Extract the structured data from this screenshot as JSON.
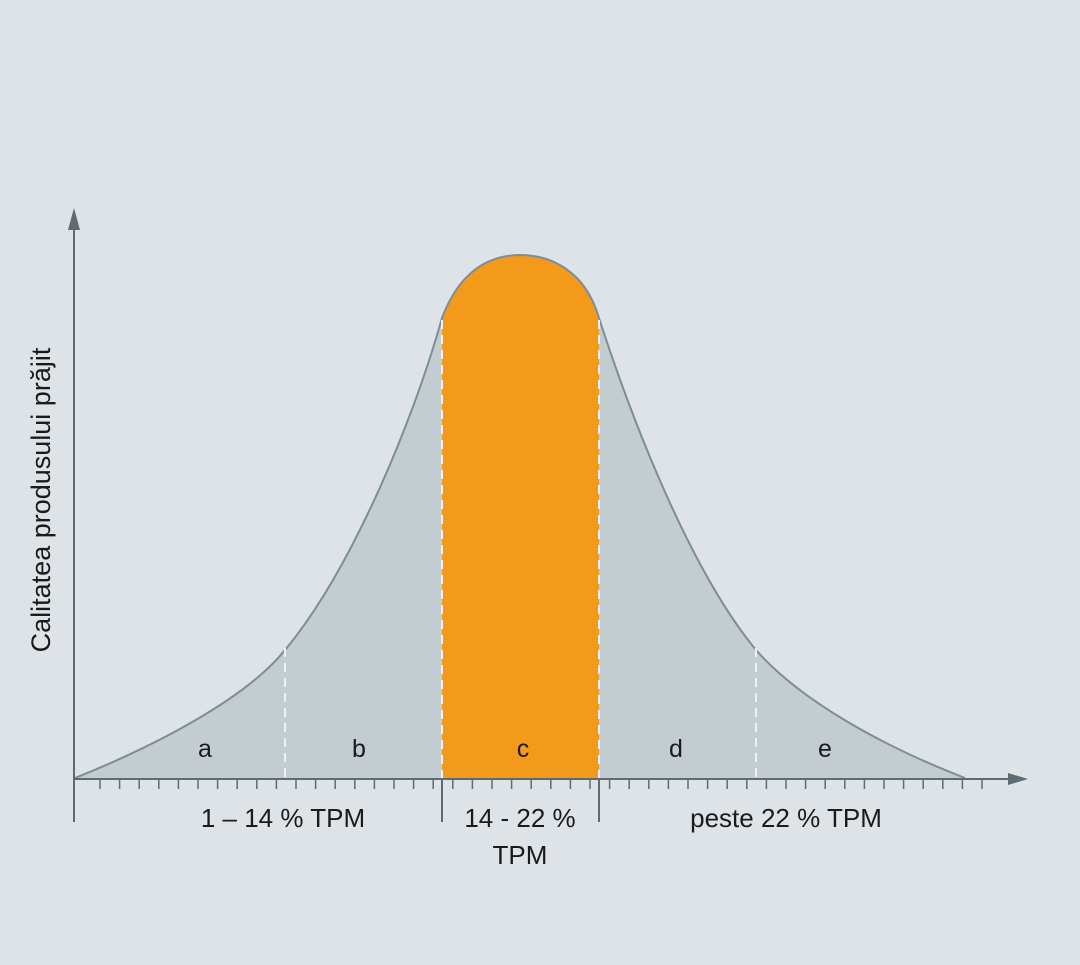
{
  "y_axis": {
    "label": "Calitatea produsului prăjit"
  },
  "zones": [
    {
      "id": "a",
      "label": "a"
    },
    {
      "id": "b",
      "label": "b"
    },
    {
      "id": "c",
      "label": "c"
    },
    {
      "id": "d",
      "label": "d"
    },
    {
      "id": "e",
      "label": "e"
    }
  ],
  "ranges": [
    {
      "id": "low",
      "lines": [
        "1 – 14 % TPM"
      ]
    },
    {
      "id": "optimal",
      "lines": [
        "14 - 22 %",
        "TPM"
      ]
    },
    {
      "id": "high",
      "lines": [
        "peste 22 % TPM"
      ]
    }
  ],
  "colors": {
    "background": "#dde3e7",
    "curve_fill": "#c2ccd1",
    "curve_stroke": "#7d8d96",
    "highlight_fill": "#f39a1b",
    "axis": "#5e6b73",
    "divider_dashed": "#eef1f3"
  }
}
